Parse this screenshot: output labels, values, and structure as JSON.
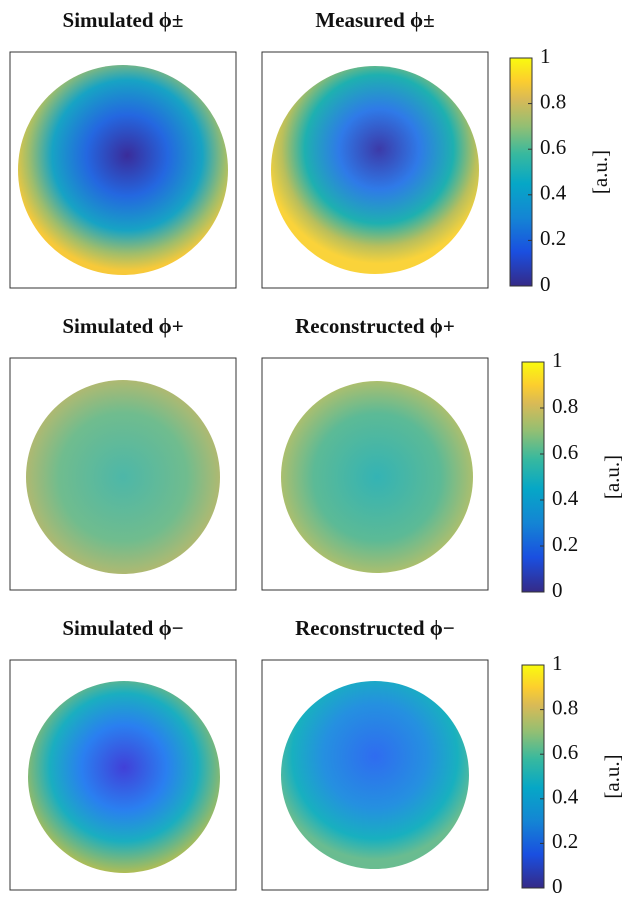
{
  "chart_data": [
    {
      "type": "heatmap",
      "panels": [
        {
          "title": "Simulated ϕ±"
        },
        {
          "title": "Measured ϕ±"
        }
      ],
      "colorbar": {
        "label": "[a.u.]",
        "ylim": [
          0,
          1
        ],
        "yticks": [
          0,
          0.2,
          0.4,
          0.6,
          0.8,
          1
        ]
      }
    },
    {
      "type": "heatmap",
      "panels": [
        {
          "title": "Simulated ϕ+"
        },
        {
          "title": "Reconstructed ϕ+"
        }
      ],
      "colorbar": {
        "label": "[a.u.]",
        "ylim": [
          0,
          1
        ],
        "yticks": [
          0,
          0.2,
          0.4,
          0.6,
          0.8,
          1
        ]
      }
    },
    {
      "type": "heatmap",
      "panels": [
        {
          "title": "Simulated ϕ−"
        },
        {
          "title": "Reconstructed ϕ−"
        }
      ],
      "colorbar": {
        "label": "[a.u.]",
        "ylim": [
          0,
          1
        ],
        "yticks": [
          0,
          0.2,
          0.4,
          0.6,
          0.8,
          1
        ]
      }
    }
  ]
}
